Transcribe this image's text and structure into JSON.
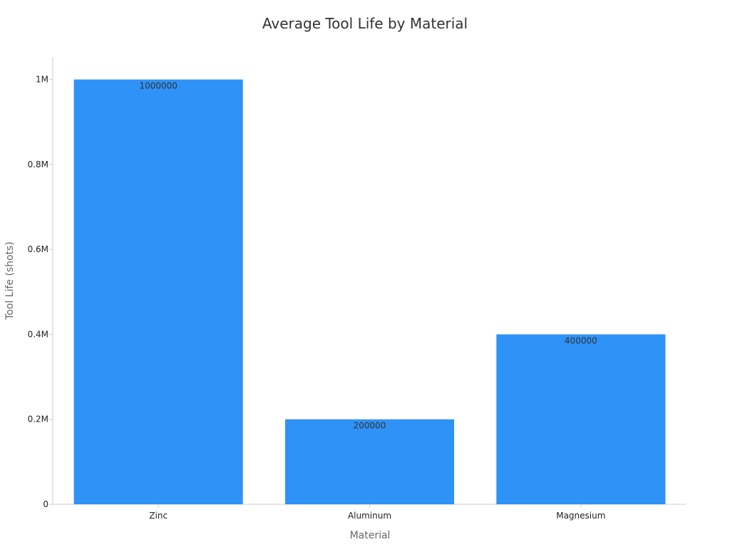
{
  "chart_data": {
    "type": "bar",
    "title": "Average Tool Life by Material",
    "xlabel": "Material",
    "ylabel": "Tool Life (shots)",
    "categories": [
      "Zinc",
      "Aluminum",
      "Magnesium"
    ],
    "values": [
      1000000,
      200000,
      400000
    ],
    "data_labels": [
      "1000000",
      "200000",
      "400000"
    ],
    "ylim": [
      0,
      1053000
    ],
    "y_ticks": [
      0,
      200000,
      400000,
      600000,
      800000,
      1000000
    ],
    "y_tick_labels": [
      "0",
      "0.2M",
      "0.4M",
      "0.6M",
      "0.8M",
      "1M"
    ],
    "grid": false,
    "legend": "none",
    "colors": {
      "bar": "#2f92f7",
      "axis": "#cccccc",
      "title": "#333333",
      "axis_title": "#666666"
    }
  }
}
